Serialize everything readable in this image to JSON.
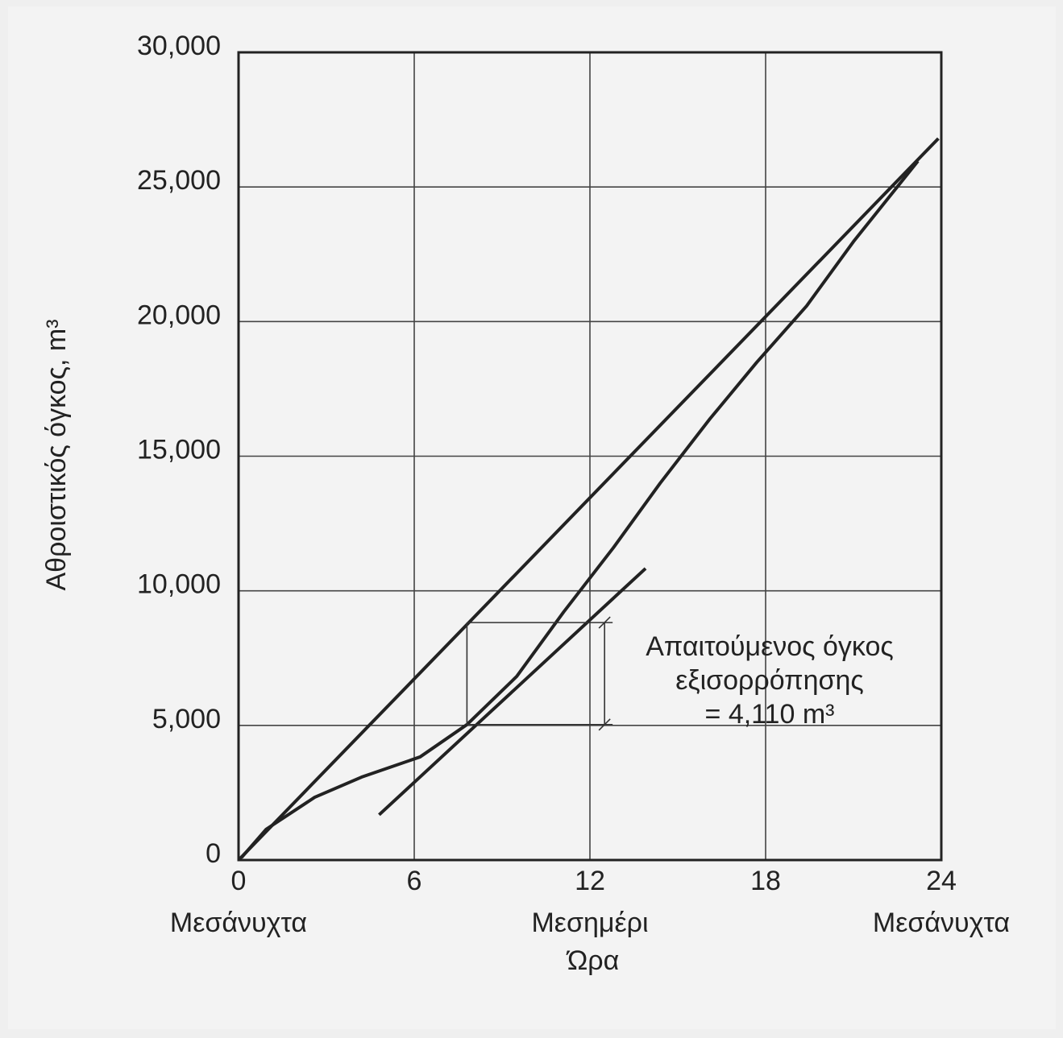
{
  "chart_data": {
    "type": "line",
    "xlabel": "Ώρα",
    "ylabel": "Αθροιστικός όγκος, m³",
    "xlim": [
      0,
      24
    ],
    "ylim": [
      0,
      30000
    ],
    "xticks": [
      0,
      6,
      12,
      18,
      24
    ],
    "yticks": [
      0,
      {
        "value": 5000,
        "label": "5,000"
      },
      {
        "value": 10000,
        "label": "10,000"
      },
      {
        "value": 15000,
        "label": "15,000"
      },
      {
        "value": 20000,
        "label": "20,000"
      },
      {
        "value": 25000,
        "label": "25,000"
      },
      {
        "value": 30000,
        "label": "30,000"
      }
    ],
    "grid": true,
    "time_labels": [
      {
        "x": 0,
        "label": "Μεσάνυχτα"
      },
      {
        "x": 12,
        "label": "Μεσημέρι"
      },
      {
        "x": 24,
        "label": "Μεσάνυχτα"
      }
    ],
    "series": [
      {
        "color": "#222222",
        "x": [
          0,
          23.9
        ],
        "values": [
          0,
          26800
        ]
      },
      {
        "color": "#222222",
        "x": [
          0.1,
          0.94,
          2.6,
          4.2,
          6.2,
          7.8,
          9.5,
          11.1,
          12.8,
          14.4,
          16.1,
          17.7,
          19.4,
          21.0,
          23.2
        ],
        "values": [
          90,
          1140,
          2330,
          3080,
          3830,
          5030,
          6820,
          9210,
          11600,
          14000,
          16390,
          18490,
          20580,
          22970,
          25960
        ]
      },
      {
        "color": "#222222",
        "x": [
          4.8,
          13.9
        ],
        "values": [
          1680,
          10830
        ]
      }
    ],
    "annotation": {
      "text": [
        "Απαιτούμενος όγκος",
        "εξισορρόπησης",
        "= 4,110 m³"
      ],
      "x": [
        7.8,
        12.5
      ],
      "y": [
        5030,
        8820
      ]
    }
  }
}
